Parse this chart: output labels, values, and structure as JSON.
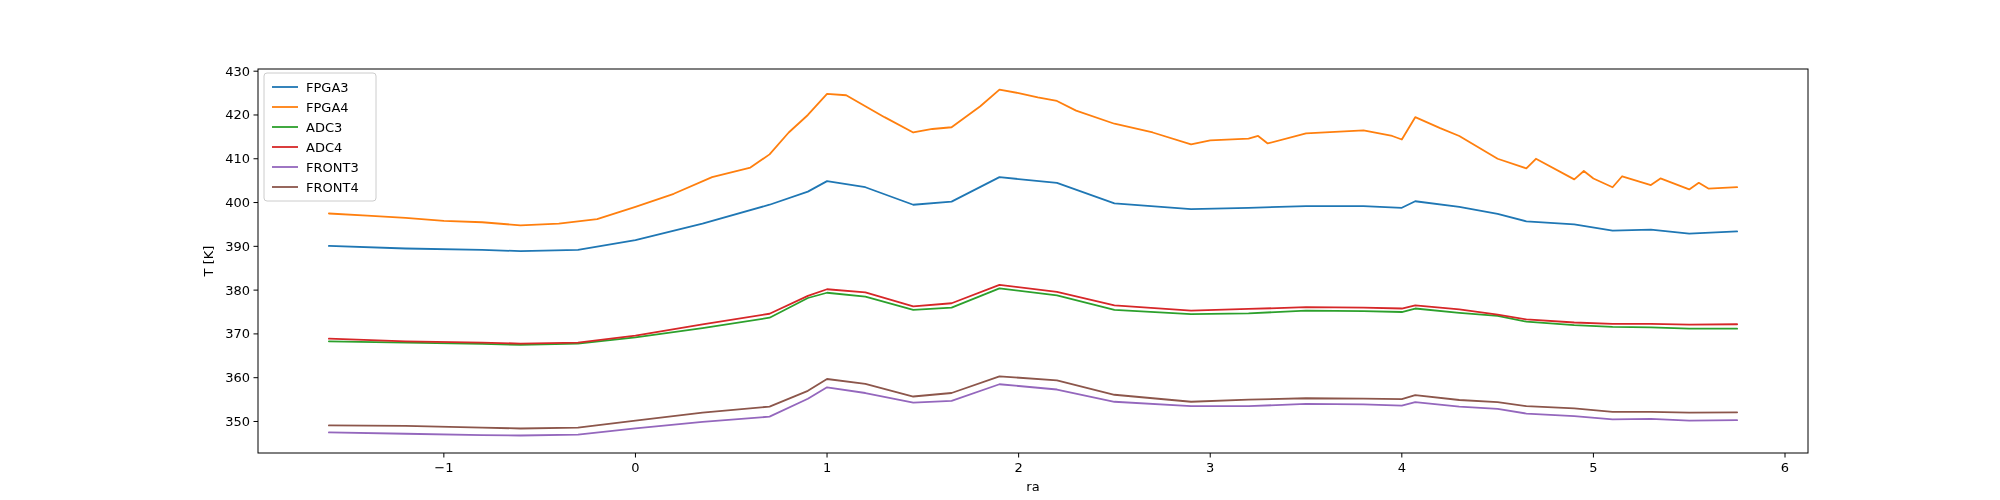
{
  "chart_data": {
    "type": "line",
    "xlabel": "ra",
    "ylabel": "T [K]",
    "x": [
      -1.6,
      -1.2,
      -0.8,
      -0.6,
      -0.3,
      0,
      0.35,
      0.7,
      0.9,
      1.0,
      1.2,
      1.45,
      1.65,
      1.9,
      2.2,
      2.5,
      2.9,
      3.2,
      3.5,
      3.8,
      4.0,
      4.07,
      4.3,
      4.5,
      4.65,
      4.9,
      5.1,
      5.3,
      5.5,
      5.75
    ],
    "series": [
      {
        "name": "FPGA3",
        "color": "#1f77b4",
        "values": [
          390.1,
          389.5,
          389.2,
          388.9,
          389.2,
          391.4,
          395.2,
          399.5,
          402.5,
          404.9,
          403.5,
          399.5,
          400.2,
          405.8,
          404.5,
          399.8,
          398.5,
          398.8,
          399.2,
          399.2,
          398.8,
          400.3,
          399,
          397.4,
          395.7,
          395,
          393.6,
          393.8,
          392.9,
          393.4
        ]
      },
      {
        "name": "FPGA4",
        "color": "#ff7f0e",
        "x": [
          -1.6,
          -1.4,
          -1.2,
          -1,
          -0.8,
          -0.6,
          -0.4,
          -0.2,
          0,
          0.2,
          0.4,
          0.6,
          0.7,
          0.8,
          0.9,
          1.0,
          1.1,
          1.2,
          1.3,
          1.45,
          1.55,
          1.65,
          1.8,
          1.9,
          2.0,
          2.1,
          2.2,
          2.3,
          2.5,
          2.7,
          2.9,
          3.0,
          3.2,
          3.25,
          3.3,
          3.5,
          3.8,
          3.95,
          4.0,
          4.07,
          4.2,
          4.3,
          4.5,
          4.65,
          4.7,
          4.9,
          4.95,
          5.0,
          5.1,
          5.15,
          5.3,
          5.35,
          5.5,
          5.55,
          5.6,
          5.75
        ],
        "values": [
          397.5,
          397,
          396.5,
          395.8,
          395.5,
          394.8,
          395.2,
          396.2,
          399,
          402,
          405.8,
          408,
          411,
          416,
          420,
          424.8,
          424.5,
          422,
          419.5,
          416,
          416.8,
          417.2,
          422,
          425.8,
          425,
          424,
          423.2,
          421,
          418,
          416,
          413.3,
          414.2,
          414.6,
          415.2,
          413.5,
          415.8,
          416.5,
          415.2,
          414.4,
          419.5,
          417,
          415.2,
          410,
          407.8,
          410,
          405.3,
          407.2,
          405.5,
          403.5,
          406,
          404,
          405.5,
          403,
          404.5,
          403.2,
          403.5
        ]
      },
      {
        "name": "ADC3",
        "color": "#2ca02c",
        "values": [
          368.3,
          368,
          367.7,
          367.5,
          367.8,
          369.2,
          371.3,
          373.7,
          378.2,
          379.4,
          378.5,
          375.5,
          376,
          380.4,
          378.8,
          375.5,
          374.5,
          374.7,
          375.3,
          375.2,
          375,
          375.8,
          374.8,
          374.1,
          372.8,
          372,
          371.6,
          371.5,
          371.2,
          371.2
        ]
      },
      {
        "name": "ADC4",
        "color": "#d62728",
        "values": [
          368.9,
          368.3,
          368,
          367.8,
          368,
          369.6,
          372.2,
          374.6,
          378.7,
          380.2,
          379.5,
          376.3,
          377,
          381.2,
          379.6,
          376.5,
          375.3,
          375.7,
          376.1,
          376,
          375.8,
          376.5,
          375.6,
          374.4,
          373.3,
          372.6,
          372.3,
          372.3,
          372.1,
          372.2
        ]
      },
      {
        "name": "FRONT3",
        "color": "#9467bd",
        "values": [
          347.5,
          347.2,
          346.9,
          346.8,
          347,
          348.4,
          349.9,
          351.1,
          355.2,
          357.8,
          356.5,
          354.3,
          354.7,
          358.5,
          357.3,
          354.5,
          353.5,
          353.5,
          354,
          353.9,
          353.6,
          354.4,
          353.4,
          352.9,
          351.8,
          351.2,
          350.5,
          350.6,
          350.2,
          350.3
        ]
      },
      {
        "name": "FRONT4",
        "color": "#8c564b",
        "values": [
          349.1,
          349,
          348.6,
          348.4,
          348.6,
          350.2,
          352,
          353.4,
          357,
          359.7,
          358.6,
          355.7,
          356.5,
          360.3,
          359.4,
          356.1,
          354.5,
          355,
          355.3,
          355.2,
          355.1,
          356,
          354.9,
          354.4,
          353.5,
          353,
          352.2,
          352.2,
          352,
          352.1
        ]
      }
    ],
    "xlim": [
      -1.97,
      6.12
    ],
    "xticks": [
      {
        "value": -1,
        "label": "−1"
      },
      0,
      1,
      2,
      3,
      4,
      5,
      6
    ],
    "ylim": [
      342.8,
      430.5
    ],
    "yticks": [
      350,
      360,
      370,
      380,
      390,
      400,
      410,
      420,
      430
    ],
    "legend": "top left",
    "line_style": "solid",
    "marker": "none",
    "grid": false
  }
}
